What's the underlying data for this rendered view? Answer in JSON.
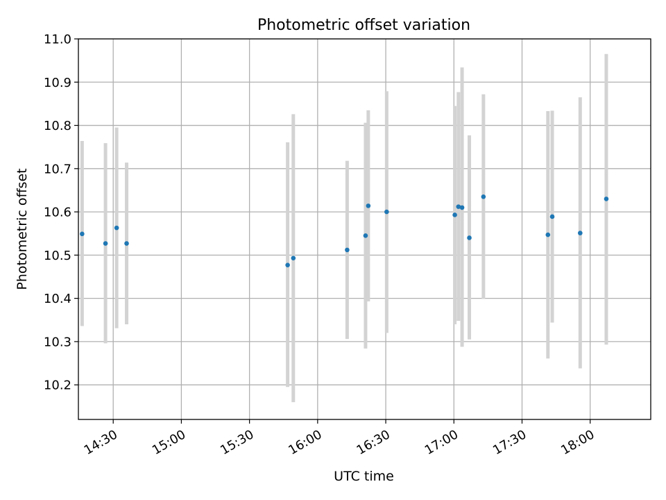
{
  "chart_data": {
    "type": "scatter",
    "title": "Photometric offset variation",
    "xlabel": "UTC time",
    "ylabel": "Photometric offset",
    "xlim_minutes": [
      14.6667,
      266.6667
    ],
    "ylim": [
      10.12,
      11.0
    ],
    "grid": true,
    "x_unit": "minutes after 14:00 UTC",
    "x_ticks": [
      {
        "minutes": 30,
        "label": "14:30"
      },
      {
        "minutes": 60,
        "label": "15:00"
      },
      {
        "minutes": 90,
        "label": "15:30"
      },
      {
        "minutes": 120,
        "label": "16:00"
      },
      {
        "minutes": 150,
        "label": "16:30"
      },
      {
        "minutes": 180,
        "label": "17:00"
      },
      {
        "minutes": 210,
        "label": "17:30"
      },
      {
        "minutes": 240,
        "label": "18:00"
      }
    ],
    "y_ticks": [
      {
        "value": 10.2,
        "label": "10.2"
      },
      {
        "value": 10.3,
        "label": "10.3"
      },
      {
        "value": 10.4,
        "label": "10.4"
      },
      {
        "value": 10.5,
        "label": "10.5"
      },
      {
        "value": 10.6,
        "label": "10.6"
      },
      {
        "value": 10.7,
        "label": "10.7"
      },
      {
        "value": 10.8,
        "label": "10.8"
      },
      {
        "value": 10.9,
        "label": "10.9"
      },
      {
        "value": 11.0,
        "label": "11.0"
      }
    ],
    "marker_color": "#1f77b4",
    "errorbar_color": "#d3d3d3",
    "grid_color": "#b0b0b0",
    "points": [
      {
        "t": 16.3,
        "y": 10.549,
        "lo": 10.336,
        "hi": 10.764
      },
      {
        "t": 26.6,
        "y": 10.527,
        "lo": 10.296,
        "hi": 10.759
      },
      {
        "t": 31.5,
        "y": 10.563,
        "lo": 10.331,
        "hi": 10.795
      },
      {
        "t": 35.9,
        "y": 10.527,
        "lo": 10.34,
        "hi": 10.714
      },
      {
        "t": 106.8,
        "y": 10.477,
        "lo": 10.195,
        "hi": 10.761
      },
      {
        "t": 109.3,
        "y": 10.493,
        "lo": 10.16,
        "hi": 10.826
      },
      {
        "t": 133.0,
        "y": 10.512,
        "lo": 10.306,
        "hi": 10.718
      },
      {
        "t": 141.1,
        "y": 10.545,
        "lo": 10.284,
        "hi": 10.806
      },
      {
        "t": 142.3,
        "y": 10.614,
        "lo": 10.393,
        "hi": 10.835
      },
      {
        "t": 150.4,
        "y": 10.6,
        "lo": 10.32,
        "hi": 10.879
      },
      {
        "t": 180.4,
        "y": 10.593,
        "lo": 10.34,
        "hi": 10.845
      },
      {
        "t": 182.0,
        "y": 10.612,
        "lo": 10.348,
        "hi": 10.877
      },
      {
        "t": 183.6,
        "y": 10.61,
        "lo": 10.288,
        "hi": 10.934
      },
      {
        "t": 186.8,
        "y": 10.54,
        "lo": 10.305,
        "hi": 10.777
      },
      {
        "t": 193.0,
        "y": 10.635,
        "lo": 10.399,
        "hi": 10.872
      },
      {
        "t": 221.4,
        "y": 10.547,
        "lo": 10.261,
        "hi": 10.833
      },
      {
        "t": 223.3,
        "y": 10.589,
        "lo": 10.344,
        "hi": 10.834
      },
      {
        "t": 235.6,
        "y": 10.551,
        "lo": 10.238,
        "hi": 10.865
      },
      {
        "t": 247.1,
        "y": 10.63,
        "lo": 10.293,
        "hi": 10.965
      }
    ]
  }
}
